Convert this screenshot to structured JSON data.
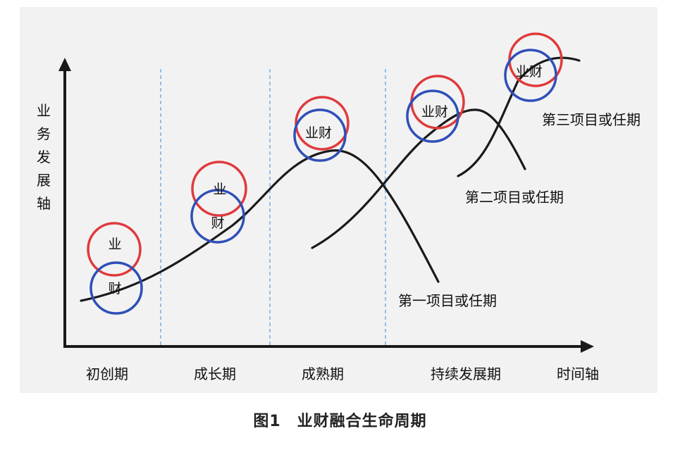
{
  "y_axis_label": [
    "业",
    "务",
    "发",
    "展",
    "轴"
  ],
  "x_axis_label": "时间轴",
  "stages": [
    "初创期",
    "成长期",
    "成熟期",
    "持续发展期"
  ],
  "curves": [
    {
      "label": "第一项目或任期"
    },
    {
      "label": "第二项目或任期"
    },
    {
      "label": "第三项目或任期"
    }
  ],
  "circle_labels": {
    "business": "业",
    "finance": "财",
    "combined": "业财"
  },
  "caption": "图1　业财融合生命周期",
  "colors": {
    "business_circle": "#e0393c",
    "finance_circle": "#2f4fb8",
    "divider": "#5b9bd5",
    "curve": "#1a1a1a",
    "axis": "#1a1a1a"
  }
}
